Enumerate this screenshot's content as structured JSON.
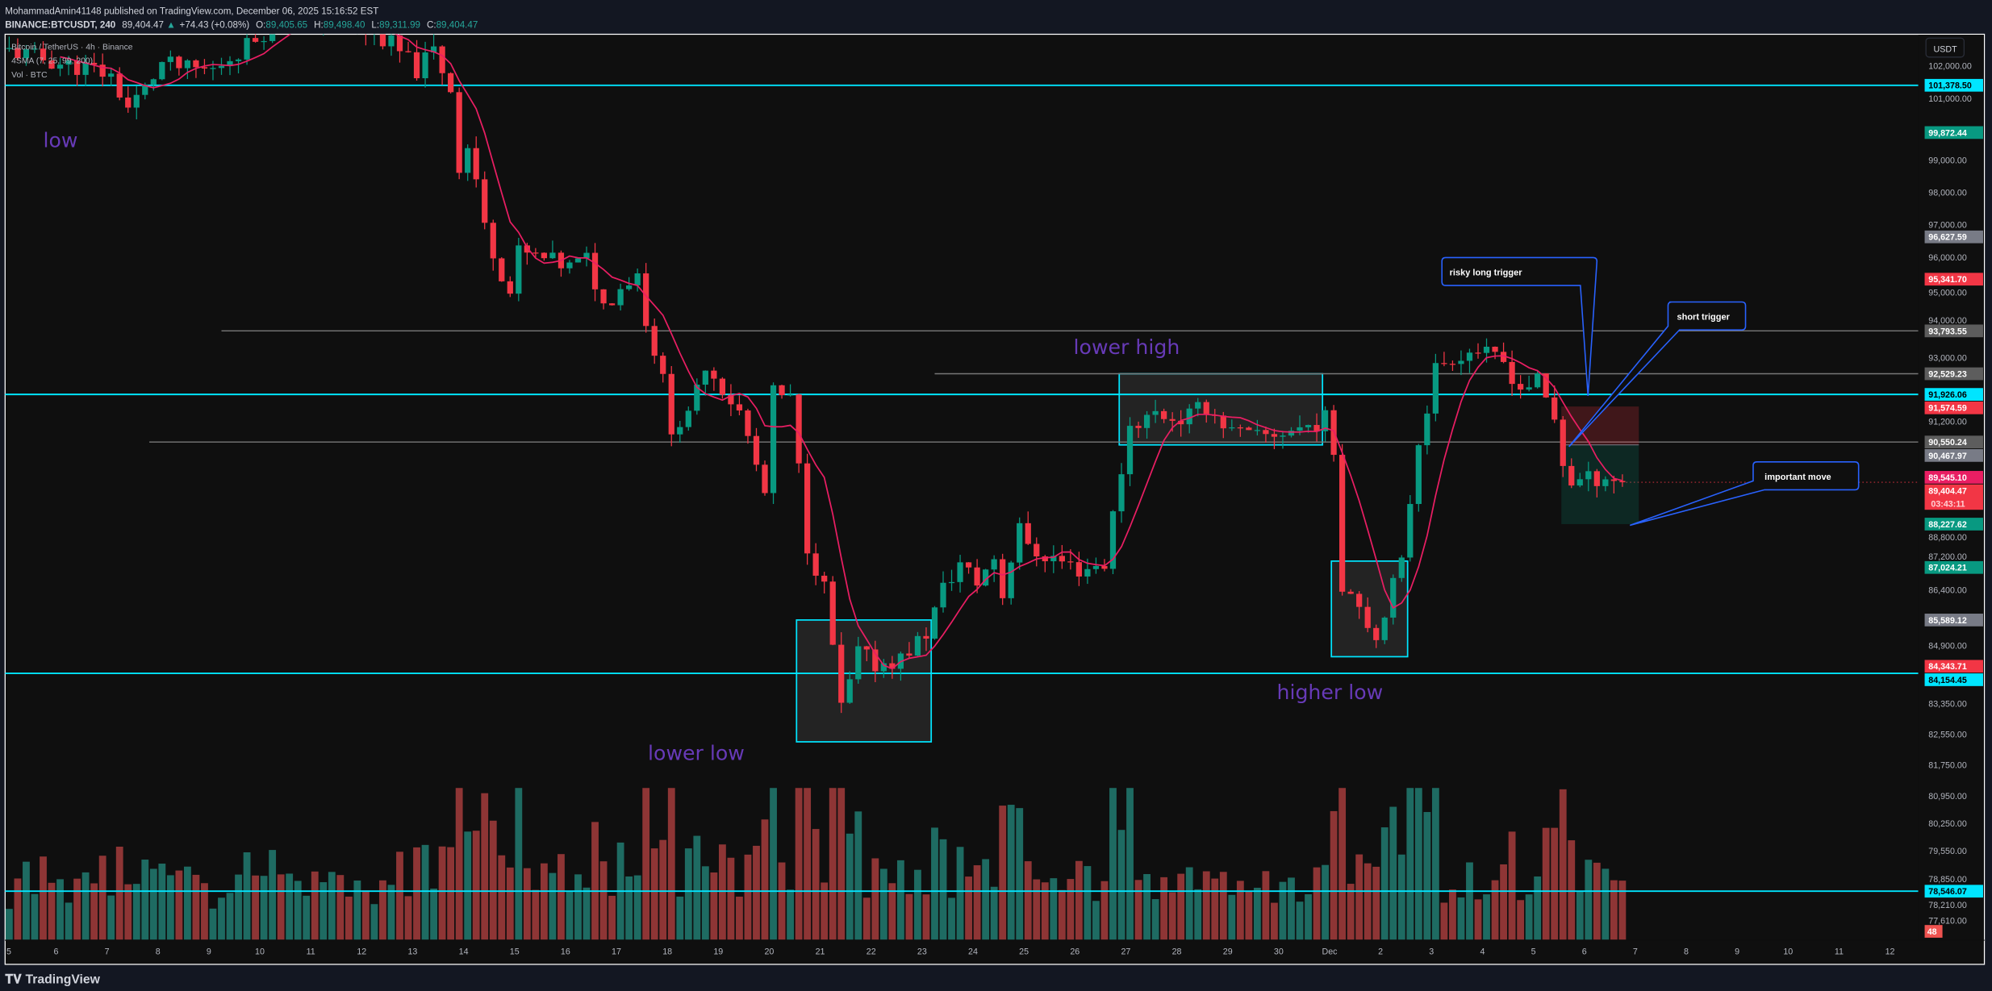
{
  "header": {
    "published_line": "MohammadAmin41148 published on TradingView.com, December 06, 2025 15:16:52 EST",
    "symbol": "BINANCE:BTCUSDT, 240",
    "last": "89,404.47",
    "change_arrow": "▲",
    "change": "+74.43 (+0.08%)",
    "o_label": "O:",
    "o": "89,405.65",
    "h_label": "H:",
    "h": "89,498.40",
    "l_label": "L:",
    "l": "89,311.99",
    "c_label": "C:",
    "c": "89,404.47"
  },
  "legend": {
    "title": "Bitcoin / TetherUS · 4h · Binance",
    "indicator": "4SMA (7, 25, 99, 200)",
    "volume": "Vol · BTC"
  },
  "currency_button": "USDT",
  "footer": {
    "brand": "TradingView"
  },
  "annotations": {
    "low": "low",
    "lower_low": "lower low",
    "lower_high": "lower high",
    "higher_low": "higher low",
    "risky_long": "risky long trigger",
    "short_trigger": "short trigger",
    "important_move": "important move"
  },
  "colors": {
    "background": "#0f0f0f",
    "up": "#089981",
    "down": "#f23645",
    "level_line": "#00e5ff",
    "sma": "#e91e63",
    "annotation_text": "#673ab7",
    "callout_border": "#2962ff"
  },
  "chart_data": {
    "type": "candlestick",
    "symbol": "BTCUSDT",
    "interval": "4h",
    "price_scale": "log",
    "price_path": [
      [
        "11-05 00",
        102490
      ],
      [
        "11-06 00",
        102080
      ],
      [
        "11-06 16",
        101880
      ],
      [
        "11-07 00",
        101670
      ],
      [
        "11-07 08",
        100660
      ],
      [
        "11-07 16",
        101260
      ],
      [
        "11-08 00",
        102080
      ],
      [
        "11-08 12",
        101880
      ],
      [
        "11-09 00",
        101880
      ],
      [
        "11-09 12",
        102490
      ],
      [
        "11-10 00",
        103110
      ],
      [
        "11-10 12",
        103740
      ],
      [
        "11-11 00",
        103530
      ],
      [
        "11-11 12",
        103320
      ],
      [
        "11-12 00",
        103110
      ],
      [
        "11-12 12",
        102700
      ],
      [
        "11-13 00",
        101880
      ],
      [
        "11-13 08",
        102490
      ],
      [
        "11-13 16",
        101270
      ],
      [
        "11-13 20",
        98830
      ],
      [
        "11-14 00",
        99420
      ],
      [
        "11-14 04",
        98430
      ],
      [
        "11-14 08",
        96880
      ],
      [
        "11-14 16",
        95560
      ],
      [
        "11-14 20",
        94930
      ],
      [
        "11-15 00",
        96140
      ],
      [
        "11-15 12",
        95940
      ],
      [
        "11-16 00",
        95700
      ],
      [
        "11-16 08",
        95940
      ],
      [
        "11-16 16",
        94550
      ],
      [
        "11-17 00",
        95120
      ],
      [
        "11-17 08",
        95530
      ],
      [
        "11-17 12",
        94160
      ],
      [
        "11-17 20",
        92300
      ],
      [
        "11-18 00",
        91020
      ],
      [
        "11-18 08",
        91200
      ],
      [
        "11-18 16",
        92860
      ],
      [
        "11-19 00",
        92120
      ],
      [
        "11-19 08",
        91390
      ],
      [
        "11-19 12",
        90660
      ],
      [
        "11-19 20",
        89060
      ],
      [
        "11-20 00",
        91940
      ],
      [
        "11-20 08",
        91750
      ],
      [
        "11-20 12",
        89770
      ],
      [
        "11-20 16",
        87650
      ],
      [
        "11-21 00",
        86450
      ],
      [
        "11-21 04",
        84890
      ],
      [
        "11-21 08",
        83200
      ],
      [
        "11-21 12",
        83870
      ],
      [
        "11-21 16",
        84720
      ],
      [
        "11-22 00",
        84380
      ],
      [
        "11-22 12",
        84550
      ],
      [
        "11-23 00",
        85230
      ],
      [
        "11-23 08",
        86440
      ],
      [
        "11-23 16",
        87130
      ],
      [
        "11-24 00",
        86610
      ],
      [
        "11-24 08",
        87300
      ],
      [
        "11-24 12",
        86260
      ],
      [
        "11-24 20",
        88350
      ],
      [
        "11-25 00",
        87480
      ],
      [
        "11-25 12",
        87300
      ],
      [
        "11-26 00",
        86960
      ],
      [
        "11-26 12",
        87130
      ],
      [
        "11-26 20",
        89770
      ],
      [
        "11-27 00",
        91020
      ],
      [
        "11-27 12",
        91380
      ],
      [
        "11-28 00",
        91200
      ],
      [
        "11-28 12",
        91570
      ],
      [
        "11-29 00",
        90840
      ],
      [
        "11-29 12",
        90660
      ],
      [
        "11-30 00",
        90840
      ],
      [
        "11-30 12",
        91020
      ],
      [
        "11-30 20",
        91200
      ],
      [
        "12-01 00",
        90300
      ],
      [
        "12-01 04",
        86600
      ],
      [
        "12-01 12",
        86090
      ],
      [
        "12-01 20",
        85060
      ],
      [
        "12-02 00",
        85910
      ],
      [
        "12-02 08",
        87130
      ],
      [
        "12-02 16",
        90660
      ],
      [
        "12-02 20",
        91570
      ],
      [
        "12-03 00",
        92680
      ],
      [
        "12-03 08",
        93050
      ],
      [
        "12-03 20",
        93240
      ],
      [
        "12-04 00",
        93050
      ],
      [
        "12-04 08",
        92860
      ],
      [
        "12-04 16",
        92120
      ],
      [
        "12-05 00",
        92300
      ],
      [
        "12-05 08",
        91200
      ],
      [
        "12-05 12",
        89950
      ],
      [
        "12-05 16",
        89410
      ],
      [
        "12-06 00",
        89480
      ],
      [
        "12-06 08",
        89590
      ],
      [
        "12-06 16",
        89404.47
      ]
    ],
    "sma_period": 7,
    "price_ticks": [
      "102,000.00",
      "101,000.00",
      "99,000.00",
      "98,000.00",
      "97,000.00",
      "96,000.00",
      "95,000.00",
      "94,000.00",
      "93,000.00",
      "91,200.00",
      "88,800.00",
      "87,200.00",
      "86,400.00",
      "84,900.00",
      "83,350.00",
      "82,550.00",
      "81,750.00",
      "80,950.00",
      "80,250.00",
      "79,550.00",
      "78,850.00",
      "78,210.00",
      "77,610.00"
    ],
    "time_ticks": [
      "5",
      "6",
      "7",
      "8",
      "9",
      "10",
      "11",
      "12",
      "13",
      "14",
      "15",
      "16",
      "17",
      "18",
      "19",
      "20",
      "21",
      "22",
      "23",
      "24",
      "25",
      "26",
      "27",
      "28",
      "29",
      "30",
      "Dec",
      "2",
      "3",
      "4",
      "5",
      "6",
      "7",
      "8",
      "9",
      "10",
      "11",
      "12"
    ],
    "horizontal_levels": [
      {
        "price": "101,378.50",
        "style": "cyan",
        "from": "11-05 00"
      },
      {
        "price": "91,926.06",
        "style": "cyan",
        "from": "11-05 00"
      },
      {
        "price": "84,154.45",
        "style": "cyan",
        "from": "11-05 00"
      },
      {
        "price": "78,546.07",
        "style": "cyan",
        "from": "11-05 00"
      },
      {
        "price": "93,793.55",
        "style": "gray",
        "from": "11-09 06"
      },
      {
        "price": "92,529.23",
        "style": "gray",
        "from": "11-23 06"
      },
      {
        "price": "90,550.24",
        "style": "gray",
        "from": "11-07 20"
      }
    ],
    "axis_labels": [
      {
        "text": "101,378.50",
        "bg": "#00e5ff",
        "fg": "#000000"
      },
      {
        "text": "99,872.44",
        "bg": "#089981",
        "fg": "#ffffff"
      },
      {
        "text": "96,627.59",
        "bg": "#787b86",
        "fg": "#ffffff"
      },
      {
        "text": "95,341.70",
        "bg": "#f23645",
        "fg": "#ffffff"
      },
      {
        "text": "93,793.55",
        "bg": "#5d5d5d",
        "fg": "#ffffff"
      },
      {
        "text": "92,529.23",
        "bg": "#5d5d5d",
        "fg": "#ffffff"
      },
      {
        "text": "91,926.06",
        "bg": "#00e5ff",
        "fg": "#000000"
      },
      {
        "text": "91,574.59",
        "bg": "#f23645",
        "fg": "#ffffff"
      },
      {
        "text": "90,550.24",
        "bg": "#5d5d5d",
        "fg": "#ffffff"
      },
      {
        "text": "90,467.97",
        "bg": "#787b86",
        "fg": "#ffffff"
      },
      {
        "text": "89,545.10",
        "bg": "#e91e63",
        "fg": "#ffffff"
      },
      {
        "text": "89,404.47",
        "bg": "#f23645",
        "fg": "#ffffff"
      },
      {
        "text": "88,227.62",
        "bg": "#089981",
        "fg": "#ffffff"
      },
      {
        "text": "87,024.21",
        "bg": "#089981",
        "fg": "#ffffff"
      },
      {
        "text": "85,589.12",
        "bg": "#787b86",
        "fg": "#ffffff"
      },
      {
        "text": "84,343.71",
        "bg": "#f23645",
        "fg": "#ffffff"
      },
      {
        "text": "84,154.45",
        "bg": "#00e5ff",
        "fg": "#000000"
      },
      {
        "text": "78,546.07",
        "bg": "#00e5ff",
        "fg": "#000000"
      }
    ],
    "countdown": "03:43:11",
    "volume_last": "48",
    "position": {
      "stop": "91,574.59",
      "entry": "90,467.97",
      "target": "88,227.62"
    }
  }
}
